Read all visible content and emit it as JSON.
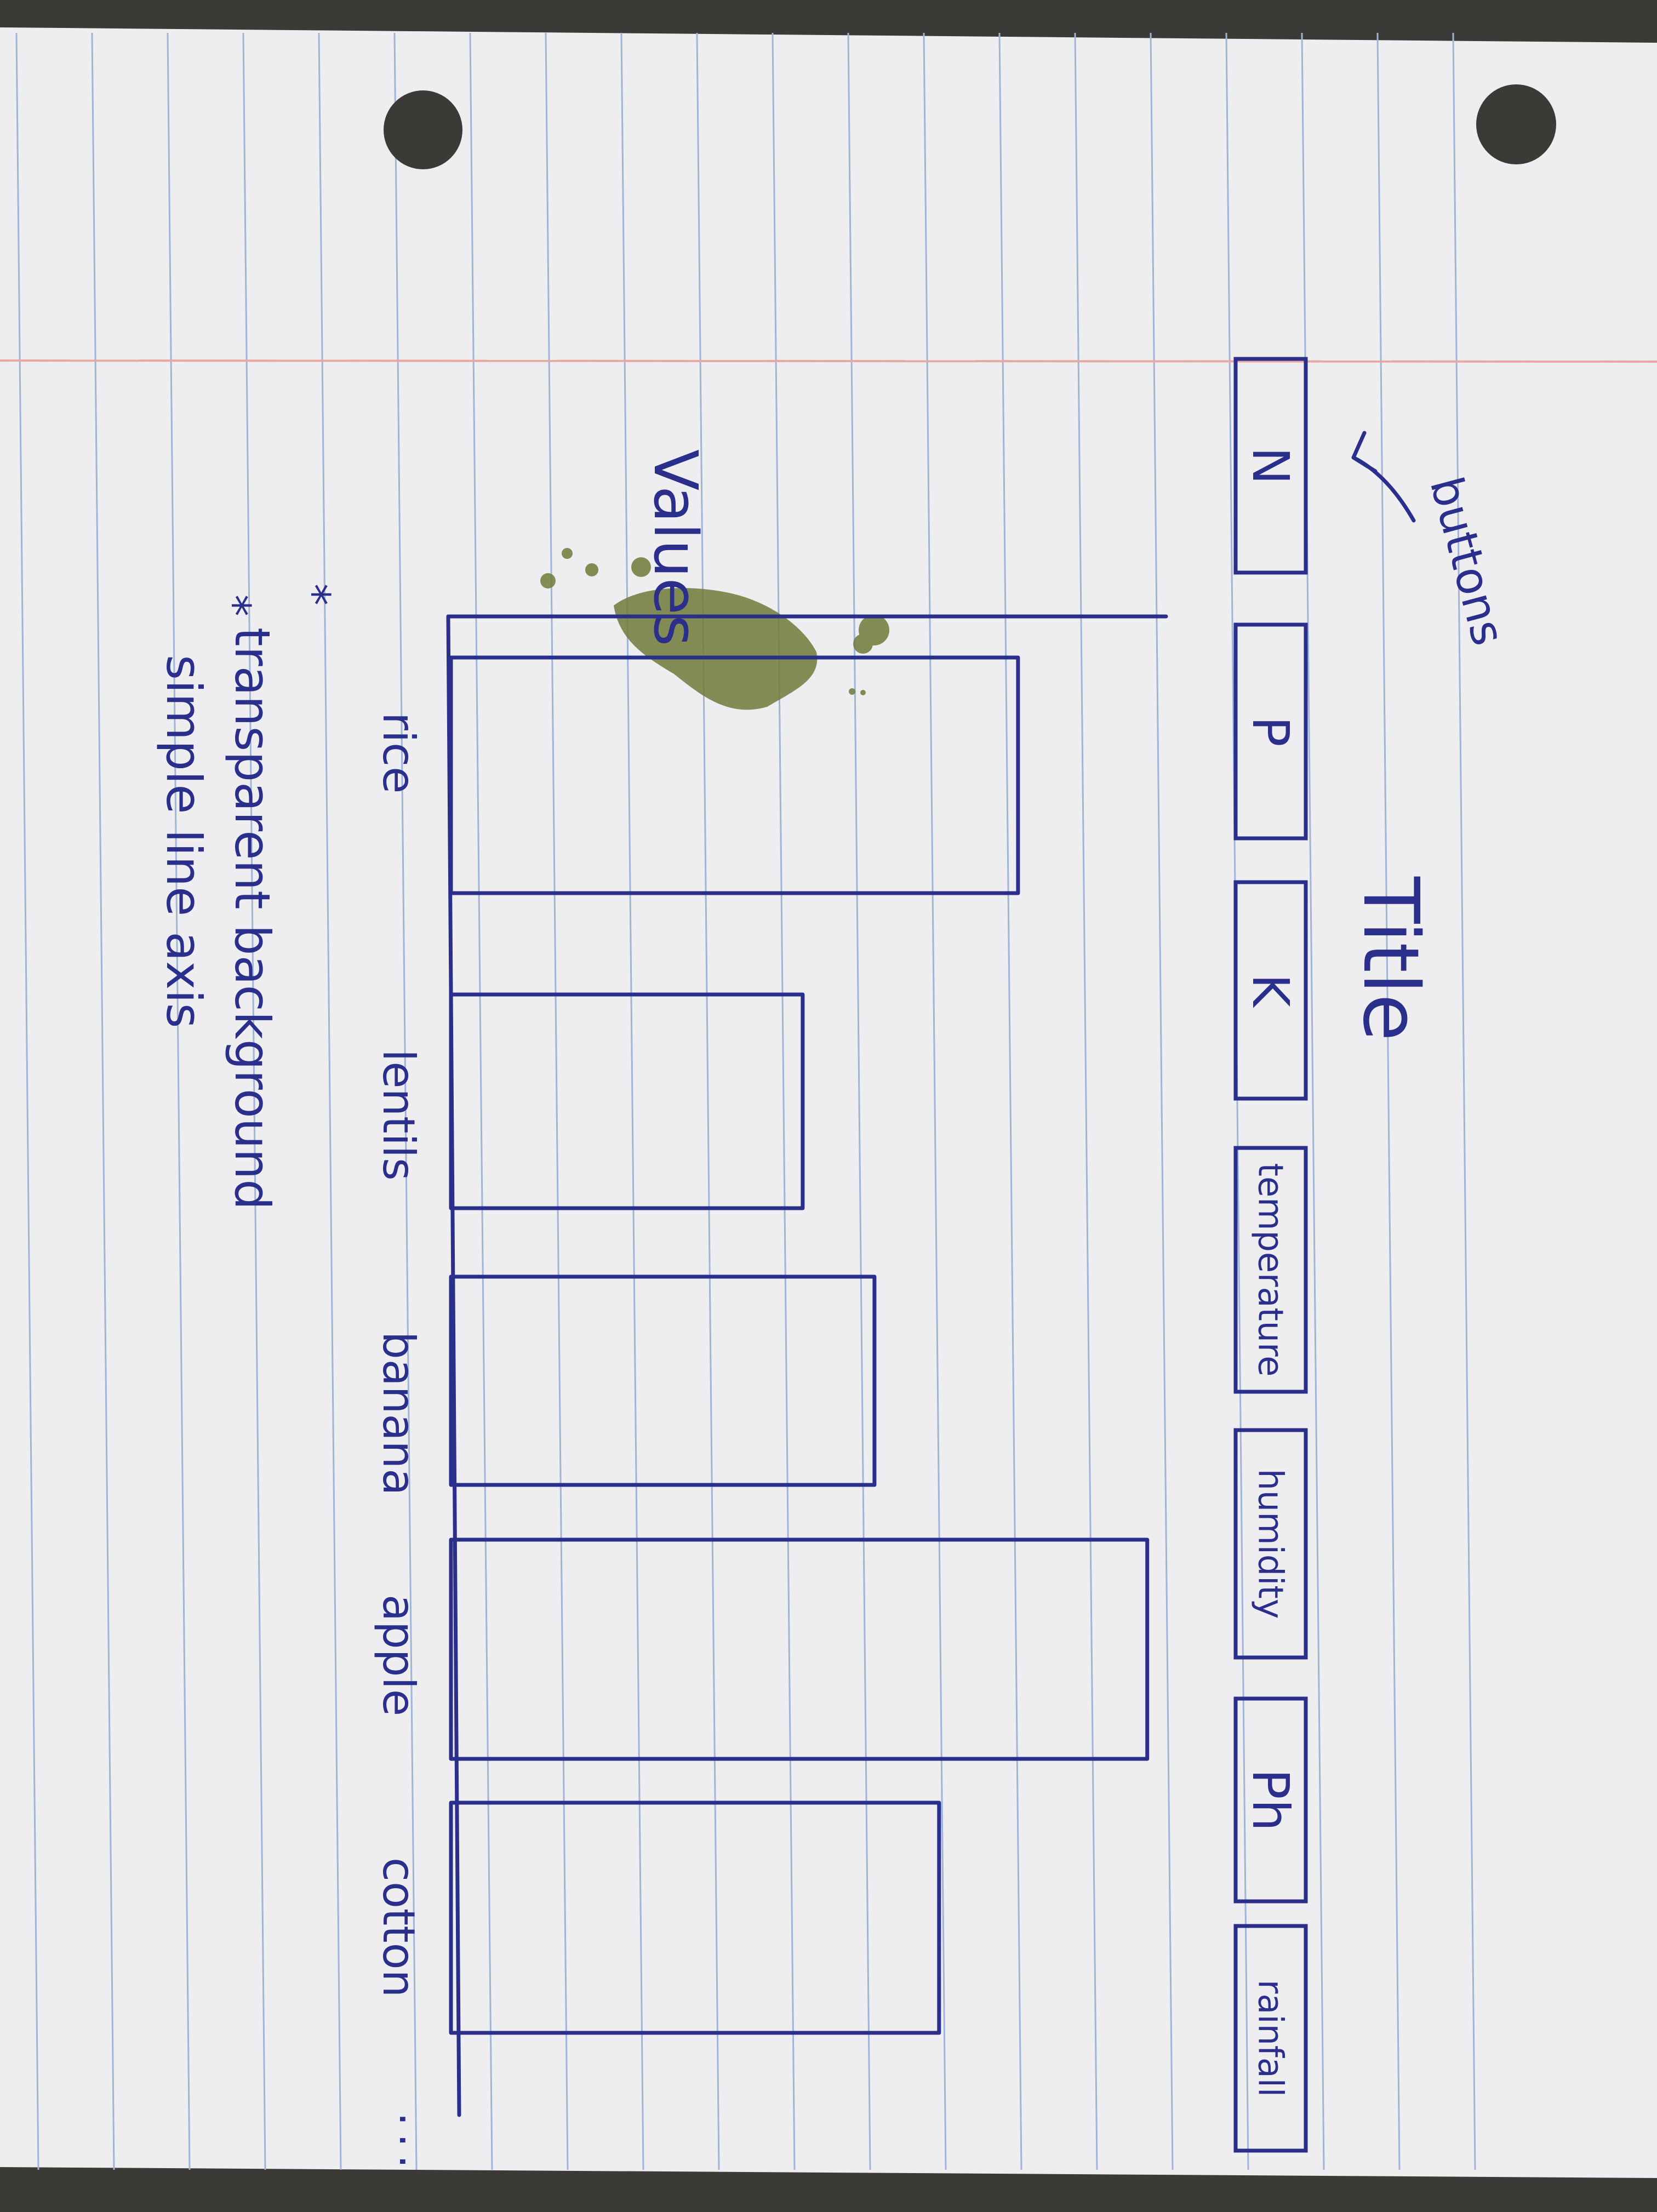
{
  "title": "Title",
  "axis_label": "Values",
  "buttons_annotation": "buttons",
  "buttons": [
    "N",
    "P",
    "K",
    "temperature",
    "humidity",
    "Ph",
    "rainfall"
  ],
  "chart_data": {
    "type": "bar",
    "categories": [
      "rice",
      "lentils",
      "banana",
      "apple",
      "cotton"
    ],
    "values": [
      79,
      49,
      59,
      97,
      68
    ],
    "continuation_marker": "...",
    "xlabel": "",
    "ylabel": "Values",
    "ylim": [
      0,
      100
    ]
  },
  "notes": [
    "transparent background",
    "simple line axis"
  ],
  "colors": {
    "ink": "#2b2f8c",
    "paper": "#eeeef0",
    "rule": "#9fb4d6",
    "margin_rule": "#e8a8a0",
    "stain": "#707a38",
    "surface": "#3c3a36"
  }
}
